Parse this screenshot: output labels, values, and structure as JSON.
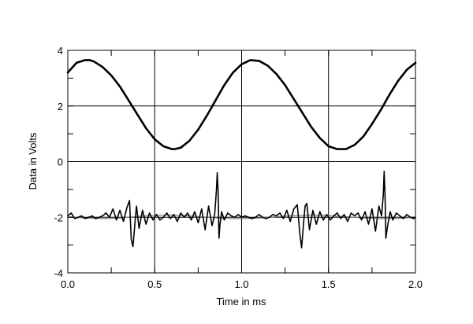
{
  "chart_data": {
    "type": "line",
    "title": "",
    "xlabel": "Time in ms",
    "ylabel": "Data in Volts",
    "xlim": [
      0.0,
      2.0
    ],
    "ylim": [
      -4,
      4
    ],
    "grid": true,
    "legend": "none",
    "x_ticks": [
      "0.0",
      "0.5",
      "1.0",
      "1.5",
      "2.0"
    ],
    "y_ticks": [
      "4",
      "2",
      "0",
      "-2",
      "-4"
    ],
    "colors": {
      "frame": "#000000",
      "grid": "#000000",
      "trace": "#000000",
      "reference": "#808080"
    },
    "series": [
      {
        "description": "sine wave, amplitude ~1.6 V, offset ~2.05 V, period ~0.98 ms",
        "x": [
          0.0,
          0.05,
          0.1,
          0.125,
          0.15,
          0.2,
          0.25,
          0.3,
          0.35,
          0.4,
          0.45,
          0.5,
          0.55,
          0.6,
          0.615,
          0.65,
          0.7,
          0.75,
          0.8,
          0.85,
          0.9,
          0.95,
          1.0,
          1.05,
          1.1,
          1.15,
          1.2,
          1.25,
          1.3,
          1.35,
          1.4,
          1.45,
          1.5,
          1.55,
          1.6,
          1.65,
          1.7,
          1.75,
          1.8,
          1.85,
          1.9,
          1.95,
          2.0
        ],
        "values": [
          3.2,
          3.55,
          3.65,
          3.65,
          3.6,
          3.4,
          3.1,
          2.7,
          2.2,
          1.7,
          1.2,
          0.8,
          0.55,
          0.45,
          0.45,
          0.5,
          0.75,
          1.15,
          1.65,
          2.2,
          2.75,
          3.2,
          3.5,
          3.65,
          3.62,
          3.45,
          3.15,
          2.75,
          2.25,
          1.75,
          1.25,
          0.85,
          0.55,
          0.45,
          0.45,
          0.6,
          0.9,
          1.35,
          1.85,
          2.4,
          2.9,
          3.3,
          3.55
        ]
      },
      {
        "description": "distortion residual near -2 V with spikes",
        "x": [
          0.0,
          0.02,
          0.04,
          0.06,
          0.08,
          0.1,
          0.12,
          0.14,
          0.16,
          0.18,
          0.2,
          0.22,
          0.24,
          0.26,
          0.28,
          0.3,
          0.32,
          0.34,
          0.355,
          0.365,
          0.375,
          0.385,
          0.395,
          0.41,
          0.43,
          0.45,
          0.47,
          0.49,
          0.51,
          0.53,
          0.55,
          0.57,
          0.59,
          0.61,
          0.63,
          0.65,
          0.67,
          0.69,
          0.71,
          0.73,
          0.75,
          0.77,
          0.79,
          0.81,
          0.83,
          0.845,
          0.855,
          0.86,
          0.865,
          0.87,
          0.875,
          0.885,
          0.9,
          0.92,
          0.94,
          0.96,
          0.98,
          1.0,
          1.02,
          1.04,
          1.06,
          1.08,
          1.1,
          1.12,
          1.14,
          1.16,
          1.18,
          1.2,
          1.22,
          1.24,
          1.26,
          1.28,
          1.3,
          1.32,
          1.335,
          1.345,
          1.355,
          1.365,
          1.375,
          1.39,
          1.41,
          1.43,
          1.45,
          1.47,
          1.49,
          1.51,
          1.53,
          1.55,
          1.57,
          1.59,
          1.61,
          1.63,
          1.65,
          1.67,
          1.69,
          1.71,
          1.73,
          1.75,
          1.77,
          1.79,
          1.805,
          1.815,
          1.82,
          1.825,
          1.83,
          1.84,
          1.855,
          1.87,
          1.89,
          1.91,
          1.93,
          1.95,
          1.97,
          1.99,
          2.0
        ],
        "values": [
          -1.95,
          -1.85,
          -2.05,
          -2.0,
          -1.95,
          -2.05,
          -2.0,
          -1.95,
          -2.05,
          -2.0,
          -1.95,
          -1.85,
          -2.0,
          -1.7,
          -2.1,
          -1.75,
          -2.15,
          -1.65,
          -1.4,
          -2.8,
          -3.05,
          -2.3,
          -1.6,
          -2.4,
          -1.75,
          -2.25,
          -1.85,
          -2.1,
          -1.9,
          -2.1,
          -2.0,
          -1.85,
          -2.05,
          -1.9,
          -2.15,
          -1.85,
          -2.0,
          -1.85,
          -2.1,
          -1.8,
          -2.2,
          -1.7,
          -2.45,
          -1.6,
          -2.3,
          -1.9,
          -1.05,
          -0.4,
          -1.1,
          -2.75,
          -2.3,
          -1.8,
          -2.1,
          -1.85,
          -1.95,
          -2.0,
          -1.9,
          -2.0,
          -1.95,
          -2.0,
          -2.05,
          -2.0,
          -1.9,
          -2.0,
          -2.05,
          -2.0,
          -1.9,
          -1.95,
          -1.85,
          -2.05,
          -1.75,
          -2.15,
          -1.7,
          -1.55,
          -2.6,
          -3.1,
          -2.3,
          -1.6,
          -1.5,
          -2.45,
          -1.75,
          -2.25,
          -1.8,
          -2.1,
          -1.9,
          -2.1,
          -1.95,
          -1.85,
          -2.05,
          -1.9,
          -2.15,
          -1.85,
          -1.95,
          -1.85,
          -2.1,
          -1.8,
          -2.25,
          -1.7,
          -2.5,
          -1.6,
          -1.95,
          -1.2,
          -0.35,
          -1.2,
          -2.75,
          -2.3,
          -1.8,
          -2.1,
          -1.85,
          -1.95,
          -2.05,
          -1.9,
          -2.0,
          -2.05,
          -2.0
        ]
      },
      {
        "description": "reference sine near -2 V",
        "x": [
          0.0,
          0.1,
          0.2,
          0.3,
          0.4,
          0.5,
          0.6,
          0.7,
          0.8,
          0.9,
          1.0,
          1.1,
          1.2,
          1.3,
          1.4,
          1.5,
          1.6,
          1.7,
          1.8,
          1.9,
          2.0
        ],
        "values": [
          -1.98,
          -2.03,
          -2.05,
          -2.03,
          -1.97,
          -1.93,
          -1.92,
          -1.95,
          -2.0,
          -2.04,
          -2.05,
          -2.03,
          -1.98,
          -1.94,
          -1.92,
          -1.94,
          -1.98,
          -2.03,
          -2.05,
          -2.04,
          -2.0
        ]
      }
    ]
  }
}
